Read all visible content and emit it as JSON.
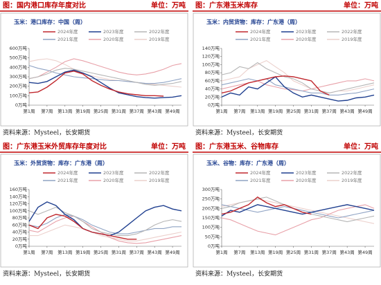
{
  "chart_data": [
    {
      "type": "line",
      "header": "图：国内港口库存年度对比",
      "unit": "单位：万吨",
      "title": "玉米：港口库存：中国（周）",
      "source": "资料来源：Mysteel，长安期货",
      "categories": [
        "第1周",
        null,
        "第7周",
        null,
        "第13周",
        null,
        "第19周",
        null,
        "第25周",
        null,
        "第31周",
        null,
        "第37周",
        null,
        "第43周",
        null,
        "第49周",
        null
      ],
      "ylim": [
        0,
        600
      ],
      "yticks": [
        {
          "value": 0,
          "label": "0万吨"
        },
        {
          "value": 100,
          "label": "100万吨"
        },
        {
          "value": 200,
          "label": "200万吨"
        },
        {
          "value": 300,
          "label": "300万吨"
        },
        {
          "value": 400,
          "label": "400万吨"
        },
        {
          "value": 500,
          "label": "500万吨"
        },
        {
          "value": 600,
          "label": "600万吨"
        }
      ],
      "grid": false,
      "series": [
        {
          "name": "2024年度",
          "color": "#c0272d",
          "values": [
            130,
            140,
            190,
            260,
            340,
            360,
            330,
            260,
            210,
            170,
            140,
            120,
            110,
            100,
            100,
            95,
            null,
            null
          ]
        },
        {
          "name": "2023年度",
          "color": "#1f3f8f",
          "values": [
            240,
            230,
            250,
            300,
            350,
            370,
            340,
            300,
            240,
            180,
            130,
            110,
            90,
            80,
            75,
            80,
            85,
            100
          ]
        },
        {
          "name": "2022年度",
          "color": "#b5b5b5",
          "values": [
            280,
            300,
            330,
            370,
            390,
            380,
            360,
            340,
            320,
            300,
            280,
            260,
            240,
            220,
            210,
            220,
            230,
            250
          ]
        },
        {
          "name": "2021年度",
          "color": "#8fa3c4",
          "values": [
            420,
            390,
            370,
            340,
            320,
            300,
            290,
            280,
            270,
            260,
            260,
            250,
            240,
            230,
            230,
            240,
            260,
            280
          ]
        },
        {
          "name": "2020年度",
          "color": "#e8a0a8",
          "values": [
            280,
            300,
            350,
            400,
            460,
            490,
            470,
            440,
            410,
            380,
            350,
            330,
            320,
            330,
            350,
            380,
            420,
            440
          ]
        },
        {
          "name": "2019年度",
          "color": "#ecd0cc",
          "values": [
            460,
            480,
            490,
            470,
            430,
            380,
            340,
            310,
            290,
            270,
            260,
            250,
            240,
            230,
            220,
            210,
            200,
            190
          ]
        }
      ]
    },
    {
      "type": "line",
      "header": "图：广东港玉米库存",
      "unit": "单位：万吨",
      "title": "玉米：内贸货物：库存：广东港（周）",
      "source": "资料来源：Mysteel，长安期货",
      "categories": [
        "第1周",
        null,
        "第7周",
        null,
        "第13周",
        null,
        "第19周",
        null,
        "第25周",
        null,
        "第31周",
        null,
        "第37周",
        null,
        "第43周",
        null,
        "第49周",
        null
      ],
      "ylim": [
        0,
        140
      ],
      "yticks": [
        {
          "value": 0,
          "label": "0万吨"
        },
        {
          "value": 20,
          "label": "20万吨"
        },
        {
          "value": 40,
          "label": "40万吨"
        },
        {
          "value": 60,
          "label": "60万吨"
        },
        {
          "value": 80,
          "label": "80万吨"
        },
        {
          "value": 100,
          "label": "100万吨"
        },
        {
          "value": 120,
          "label": "120万吨"
        },
        {
          "value": 140,
          "label": "140万吨"
        }
      ],
      "grid": false,
      "series": [
        {
          "name": "2024年度",
          "color": "#c0272d",
          "values": [
            30,
            35,
            45,
            55,
            60,
            65,
            70,
            72,
            70,
            65,
            60,
            35,
            25,
            null,
            null,
            null,
            null,
            null
          ]
        },
        {
          "name": "2023年度",
          "color": "#1f3f8f",
          "values": [
            20,
            30,
            25,
            45,
            40,
            55,
            70,
            45,
            30,
            20,
            25,
            20,
            15,
            10,
            12,
            18,
            20,
            25
          ]
        },
        {
          "name": "2022年度",
          "color": "#b5b5b5",
          "values": [
            75,
            80,
            95,
            90,
            105,
            90,
            80,
            70,
            65,
            55,
            40,
            35,
            30,
            35,
            40,
            45,
            50,
            55
          ]
        },
        {
          "name": "2021年度",
          "color": "#8fa3c4",
          "values": [
            50,
            55,
            60,
            65,
            60,
            65,
            50,
            45,
            40,
            35,
            30,
            30,
            25,
            25,
            28,
            30,
            35,
            40
          ]
        },
        {
          "name": "2020年度",
          "color": "#e8a0a8",
          "values": [
            40,
            45,
            50,
            55,
            60,
            50,
            45,
            40,
            38,
            35,
            40,
            45,
            50,
            55,
            60,
            60,
            65,
            60
          ]
        },
        {
          "name": "2019年度",
          "color": "#ecd0cc",
          "values": [
            60,
            65,
            70,
            90,
            100,
            110,
            95,
            80,
            60,
            50,
            40,
            35,
            30,
            35,
            35,
            40,
            45,
            50
          ]
        }
      ]
    },
    {
      "type": "line",
      "header": "图：广东港玉米外贸库存年度对比",
      "unit": "单位：万吨",
      "title": "玉米：外贸货物：库存：广东港（周）",
      "source": "资料来源：Mysteel，长安期货",
      "categories": [
        "第1周",
        null,
        "第7周",
        null,
        "第13周",
        null,
        "第19周",
        null,
        "第25周",
        null,
        "第31周",
        null,
        "第37周",
        null,
        "第43周",
        null,
        "第49周",
        null
      ],
      "ylim": [
        0,
        160
      ],
      "yticks": [
        {
          "value": 0,
          "label": "0万吨"
        },
        {
          "value": 20,
          "label": "20万吨"
        },
        {
          "value": 40,
          "label": "40万吨"
        },
        {
          "value": 60,
          "label": "60万吨"
        },
        {
          "value": 80,
          "label": "80万吨"
        },
        {
          "value": 100,
          "label": "100万吨"
        },
        {
          "value": 120,
          "label": "120万吨"
        },
        {
          "value": 140,
          "label": "140万吨"
        },
        {
          "value": 160,
          "label": "160万吨"
        }
      ],
      "grid": false,
      "series": [
        {
          "name": "2024年度",
          "color": "#c0272d",
          "values": [
            60,
            50,
            80,
            90,
            85,
            70,
            50,
            40,
            35,
            30,
            25,
            20,
            20,
            null,
            null,
            null,
            null,
            null
          ]
        },
        {
          "name": "2023年度",
          "color": "#1f3f8f",
          "values": [
            70,
            110,
            125,
            115,
            90,
            75,
            50,
            40,
            35,
            30,
            40,
            60,
            80,
            100,
            110,
            115,
            105,
            100
          ]
        },
        {
          "name": "2022年度",
          "color": "#b5b5b5",
          "values": [
            100,
            90,
            100,
            110,
            95,
            85,
            70,
            50,
            40,
            35,
            30,
            30,
            35,
            45,
            60,
            70,
            75,
            70
          ]
        },
        {
          "name": "2021年度",
          "color": "#8fa3c4",
          "values": [
            60,
            55,
            65,
            80,
            90,
            85,
            75,
            60,
            50,
            40,
            35,
            35,
            40,
            45,
            50,
            50,
            55,
            55
          ]
        },
        {
          "name": "2020年度",
          "color": "#e8a0a8",
          "values": [
            45,
            40,
            55,
            70,
            80,
            85,
            70,
            55,
            40,
            25,
            15,
            10,
            8,
            10,
            15,
            20,
            25,
            30
          ]
        },
        {
          "name": "2019年度",
          "color": "#ecd0cc",
          "values": [
            30,
            30,
            40,
            50,
            60,
            55,
            50,
            40,
            30,
            25,
            20,
            15,
            15,
            20,
            25,
            30,
            35,
            40
          ]
        }
      ]
    },
    {
      "type": "line",
      "header": "图：广东港玉米、谷物库存",
      "unit": "单位：万吨",
      "title": "玉米、谷物：库存：广东港（周）",
      "source": "资料来源：Mysteel，长安期货",
      "categories": [
        "第1周",
        null,
        "第7周",
        null,
        "第13周",
        null,
        "第19周",
        null,
        "第25周",
        null,
        "第31周",
        null,
        "第37周",
        null,
        "第43周",
        null,
        "第49周",
        null
      ],
      "ylim": [
        0,
        300
      ],
      "yticks": [
        {
          "value": 0,
          "label": "0万吨"
        },
        {
          "value": 50,
          "label": "50万吨"
        },
        {
          "value": 100,
          "label": "100万吨"
        },
        {
          "value": 150,
          "label": "150万吨"
        },
        {
          "value": 200,
          "label": "200万吨"
        },
        {
          "value": 250,
          "label": "250万吨"
        },
        {
          "value": 300,
          "label": "300万吨"
        }
      ],
      "grid": false,
      "series": [
        {
          "name": "2024年度",
          "color": "#c0272d",
          "values": [
            170,
            180,
            200,
            220,
            260,
            230,
            210,
            220,
            200,
            180,
            170,
            null,
            null,
            null,
            null,
            null,
            null,
            null
          ]
        },
        {
          "name": "2023年度",
          "color": "#1f3f8f",
          "values": [
            160,
            190,
            180,
            200,
            220,
            210,
            200,
            190,
            180,
            170,
            180,
            190,
            200,
            210,
            220,
            210,
            200,
            190
          ]
        },
        {
          "name": "2022年度",
          "color": "#b5b5b5",
          "values": [
            200,
            210,
            230,
            240,
            250,
            260,
            240,
            220,
            200,
            180,
            170,
            160,
            150,
            140,
            130,
            140,
            150,
            160
          ]
        },
        {
          "name": "2021年度",
          "color": "#8fa3c4",
          "values": [
            220,
            210,
            200,
            190,
            180,
            190,
            200,
            210,
            200,
            190,
            180,
            170,
            160,
            150,
            160,
            170,
            180,
            190
          ]
        },
        {
          "name": "2020年度",
          "color": "#e8a0a8",
          "values": [
            150,
            140,
            120,
            100,
            80,
            70,
            60,
            80,
            100,
            120,
            140,
            150,
            170,
            190,
            200,
            210,
            220,
            200
          ]
        },
        {
          "name": "2019年度",
          "color": "#ecd0cc",
          "values": [
            210,
            220,
            230,
            240,
            250,
            240,
            230,
            220,
            210,
            200,
            190,
            180,
            170,
            160,
            150,
            140,
            130,
            120
          ]
        }
      ]
    }
  ]
}
